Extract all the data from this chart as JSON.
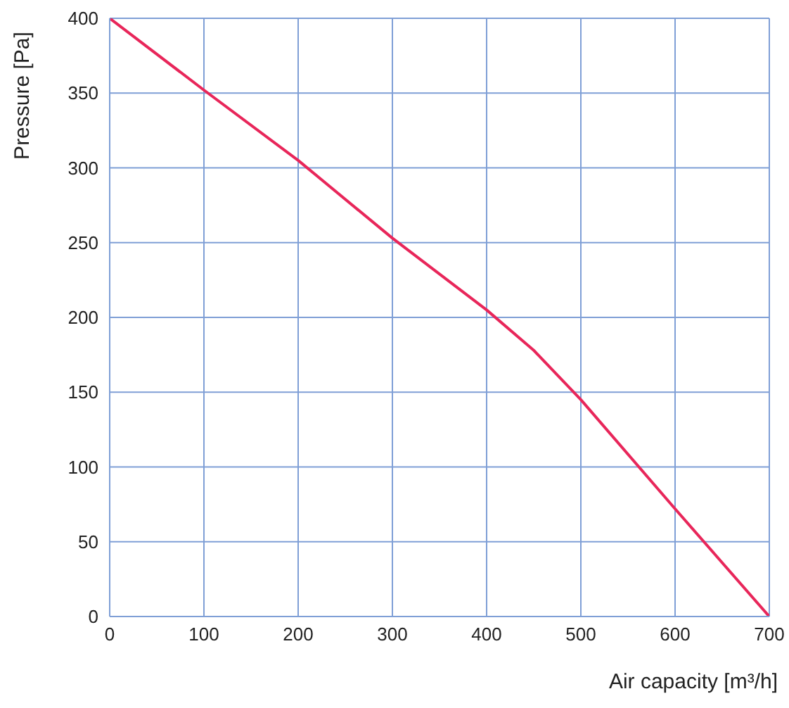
{
  "chart_data": {
    "type": "line",
    "xlabel": "Air capacity [m³/h]",
    "ylabel": "Pressure [Pa]",
    "x": [
      0,
      100,
      200,
      300,
      400,
      450,
      500,
      600,
      700
    ],
    "series": [
      {
        "color": "#e8265a",
        "values": [
          400,
          352,
          305,
          253,
          205,
          178,
          145,
          72,
          0
        ]
      }
    ],
    "xlim": [
      0,
      700
    ],
    "xticks": [
      0,
      100,
      200,
      300,
      400,
      500,
      600,
      700
    ],
    "ylim": [
      0,
      400
    ],
    "yticks": [
      0,
      50,
      100,
      150,
      200,
      250,
      300,
      350,
      400
    ],
    "grid": true,
    "marker": "none",
    "line_style": "solid"
  }
}
